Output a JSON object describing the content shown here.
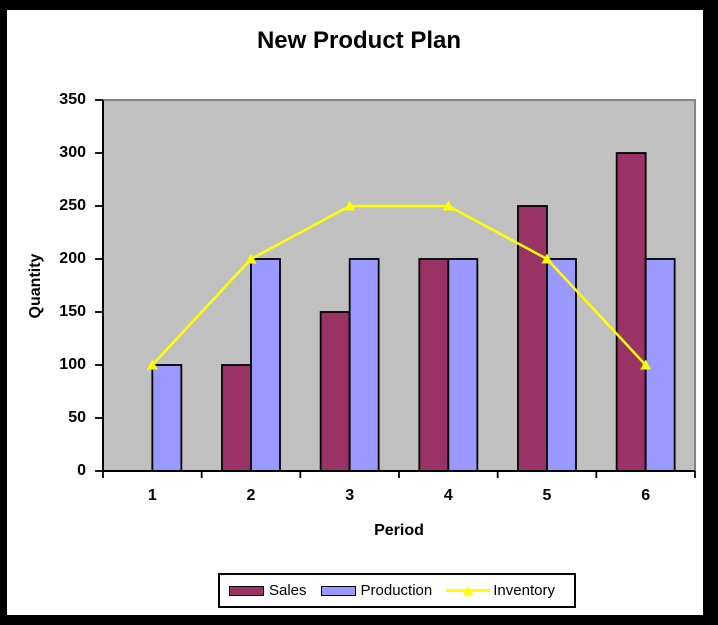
{
  "chart_data": {
    "type": "bar",
    "subtype": "grouped-bars-with-line-overlay",
    "title": "New Product Plan",
    "xlabel": "Period",
    "ylabel": "Quantity",
    "categories": [
      "1",
      "2",
      "3",
      "4",
      "5",
      "6"
    ],
    "series": [
      {
        "name": "Sales",
        "type": "bar",
        "color": "#993366",
        "values": [
          0,
          100,
          150,
          200,
          250,
          300
        ]
      },
      {
        "name": "Production",
        "type": "bar",
        "color": "#9999FF",
        "values": [
          100,
          200,
          200,
          200,
          200,
          200
        ]
      },
      {
        "name": "Inventory",
        "type": "line",
        "color": "#FFFF00",
        "marker": "triangle-up",
        "values": [
          100,
          200,
          250,
          250,
          200,
          100
        ]
      }
    ],
    "ylim": [
      0,
      350
    ],
    "yticks": [
      0,
      50,
      100,
      150,
      200,
      250,
      300,
      350
    ],
    "grid": false,
    "legend_position": "bottom",
    "colors": {
      "plot_background": "#C0C0C0",
      "plot_border": "#848284",
      "axis": "#000000",
      "bar_outline": "#000000",
      "chart_background": "#FFFFFF",
      "outer_frame": "#000000",
      "text": "#000000"
    }
  }
}
